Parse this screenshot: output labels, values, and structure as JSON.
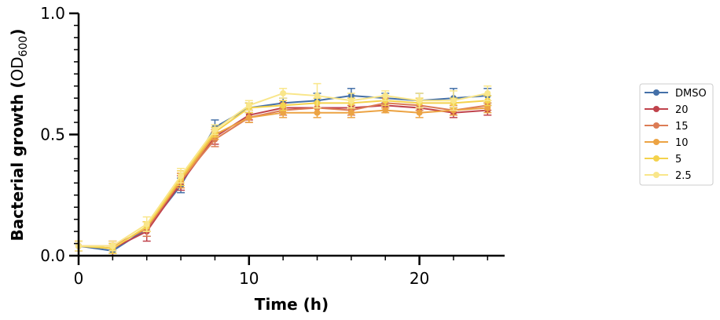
{
  "chart_data": {
    "type": "line",
    "title": "",
    "xlabel": "Time (h)",
    "ylabel_main": "Bacterial growth (",
    "ylabel_od": "OD",
    "ylabel_sub": "600",
    "ylabel_close": ")",
    "xlim": [
      0,
      25
    ],
    "ylim": [
      0,
      1.0
    ],
    "xticks": [
      0,
      10,
      20
    ],
    "xtick_labels": [
      "0",
      "10",
      "20"
    ],
    "yticks": [
      0.0,
      0.5,
      1.0
    ],
    "ytick_labels": [
      "0.0",
      "0.5",
      "1.0"
    ],
    "grid": false,
    "legend_position": "right",
    "x": [
      0,
      2,
      4,
      6,
      8,
      10,
      12,
      14,
      16,
      18,
      20,
      22,
      24
    ],
    "series": [
      {
        "name": "DMSO",
        "color": "#4470a8",
        "values": [
          0.04,
          0.02,
          0.11,
          0.29,
          0.53,
          0.61,
          0.63,
          0.64,
          0.66,
          0.65,
          0.64,
          0.65,
          0.66
        ],
        "errors": [
          0.02,
          0.02,
          0.03,
          0.03,
          0.03,
          0.02,
          0.02,
          0.03,
          0.03,
          0.02,
          0.03,
          0.04,
          0.03
        ]
      },
      {
        "name": "20",
        "color": "#c0434c",
        "values": [
          0.04,
          0.03,
          0.1,
          0.3,
          0.49,
          0.58,
          0.61,
          0.61,
          0.61,
          0.62,
          0.61,
          0.59,
          0.6
        ],
        "errors": [
          0.02,
          0.03,
          0.04,
          0.03,
          0.03,
          0.02,
          0.02,
          0.02,
          0.02,
          0.02,
          0.02,
          0.02,
          0.02
        ]
      },
      {
        "name": "15",
        "color": "#dc7c55",
        "values": [
          0.04,
          0.04,
          0.11,
          0.31,
          0.48,
          0.57,
          0.6,
          0.61,
          0.6,
          0.63,
          0.62,
          0.6,
          0.62
        ],
        "errors": [
          0.02,
          0.02,
          0.03,
          0.03,
          0.03,
          0.02,
          0.02,
          0.02,
          0.02,
          0.02,
          0.02,
          0.02,
          0.02
        ]
      },
      {
        "name": "10",
        "color": "#eca343",
        "values": [
          0.04,
          0.03,
          0.12,
          0.31,
          0.5,
          0.57,
          0.59,
          0.59,
          0.59,
          0.6,
          0.59,
          0.6,
          0.61
        ],
        "errors": [
          0.02,
          0.02,
          0.02,
          0.03,
          0.02,
          0.02,
          0.02,
          0.02,
          0.02,
          0.01,
          0.02,
          0.02,
          0.02
        ]
      },
      {
        "name": "5",
        "color": "#f4d24c",
        "values": [
          0.04,
          0.03,
          0.12,
          0.32,
          0.51,
          0.61,
          0.62,
          0.63,
          0.63,
          0.64,
          0.63,
          0.63,
          0.64
        ],
        "errors": [
          0.02,
          0.02,
          0.02,
          0.03,
          0.02,
          0.02,
          0.02,
          0.02,
          0.02,
          0.02,
          0.02,
          0.02,
          0.02
        ]
      },
      {
        "name": "2.5",
        "color": "#f9e68a",
        "values": [
          0.04,
          0.04,
          0.13,
          0.33,
          0.52,
          0.62,
          0.67,
          0.66,
          0.64,
          0.66,
          0.64,
          0.64,
          0.67
        ],
        "errors": [
          0.02,
          0.02,
          0.03,
          0.03,
          0.02,
          0.02,
          0.02,
          0.05,
          0.03,
          0.02,
          0.03,
          0.04,
          0.03
        ]
      }
    ]
  }
}
